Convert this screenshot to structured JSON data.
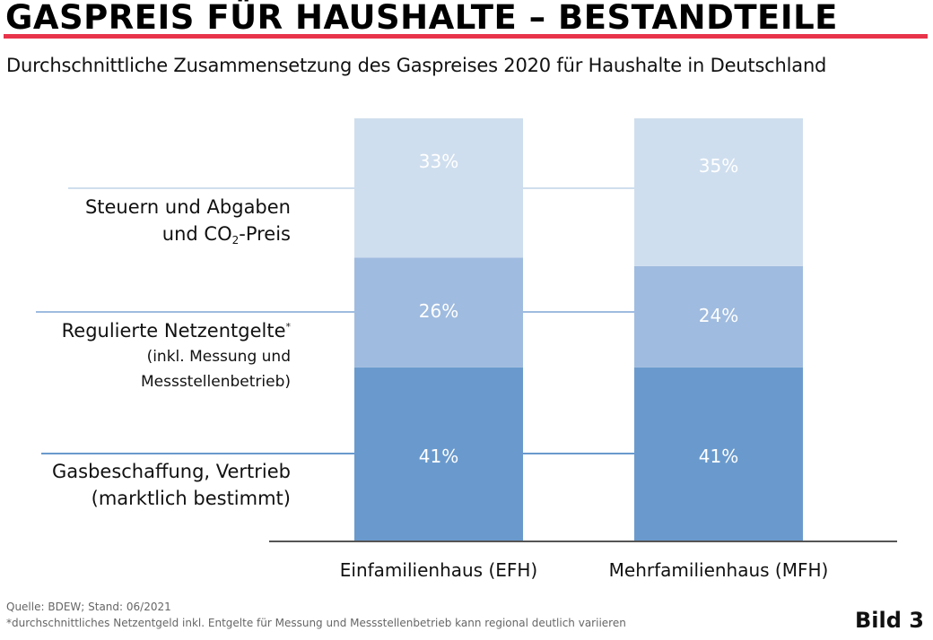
{
  "header": {
    "title": "GASPREIS FÜR HAUSHALTE – BESTANDTEILE",
    "subtitle": "Durchschnittliche Zusammensetzung des Gaspreises 2020 für Haushalte in Deutschland",
    "accent_color": "#e8344a"
  },
  "legend": {
    "steuern": {
      "line1": "Steuern und Abgaben",
      "line2_pre": "und CO",
      "line2_sub": "2",
      "line2_post": "-Preis"
    },
    "netz": {
      "line1": "Regulierte Netzentgelte",
      "line1_sup": "*",
      "line2": "(inkl. Messung und",
      "line3": "Messstellenbetrieb)"
    },
    "gas": {
      "line1": "Gasbeschaffung, Vertrieb",
      "line2": "(marktlich bestimmt)"
    }
  },
  "footer": {
    "source": "Quelle: BDEW; Stand: 06/2021",
    "note": "*durchschnittliches Netzentgeld inkl. Entgelte für Messung und Messstellenbetrieb kann regional deutlich variieren",
    "figure_label": "Bild 3"
  },
  "chart_data": {
    "type": "bar",
    "stacked": true,
    "title": "Durchschnittliche Zusammensetzung des Gaspreises 2020 für Haushalte in Deutschland",
    "xlabel": "",
    "ylabel": "",
    "ylim": [
      0,
      100
    ],
    "unit": "%",
    "grid": false,
    "categories": [
      "Einfamilienhaus (EFH)",
      "Mehrfamilienhaus (MFH)"
    ],
    "series": [
      {
        "name": "Gasbeschaffung, Vertrieb (marktlich bestimmt)",
        "values": [
          41,
          41
        ],
        "labels": [
          "41%",
          "41%"
        ],
        "color": "#6a9acd"
      },
      {
        "name": "Regulierte Netzentgelte* (inkl. Messung und Messstellenbetrieb)",
        "values": [
          26,
          24
        ],
        "labels": [
          "26%",
          "24%"
        ],
        "color": "#9fbbdf"
      },
      {
        "name": "Steuern und Abgaben und CO2-Preis",
        "values": [
          33,
          35
        ],
        "labels": [
          "33%",
          "35%"
        ],
        "color": "#cfdeee"
      }
    ],
    "legend_position": "left"
  }
}
